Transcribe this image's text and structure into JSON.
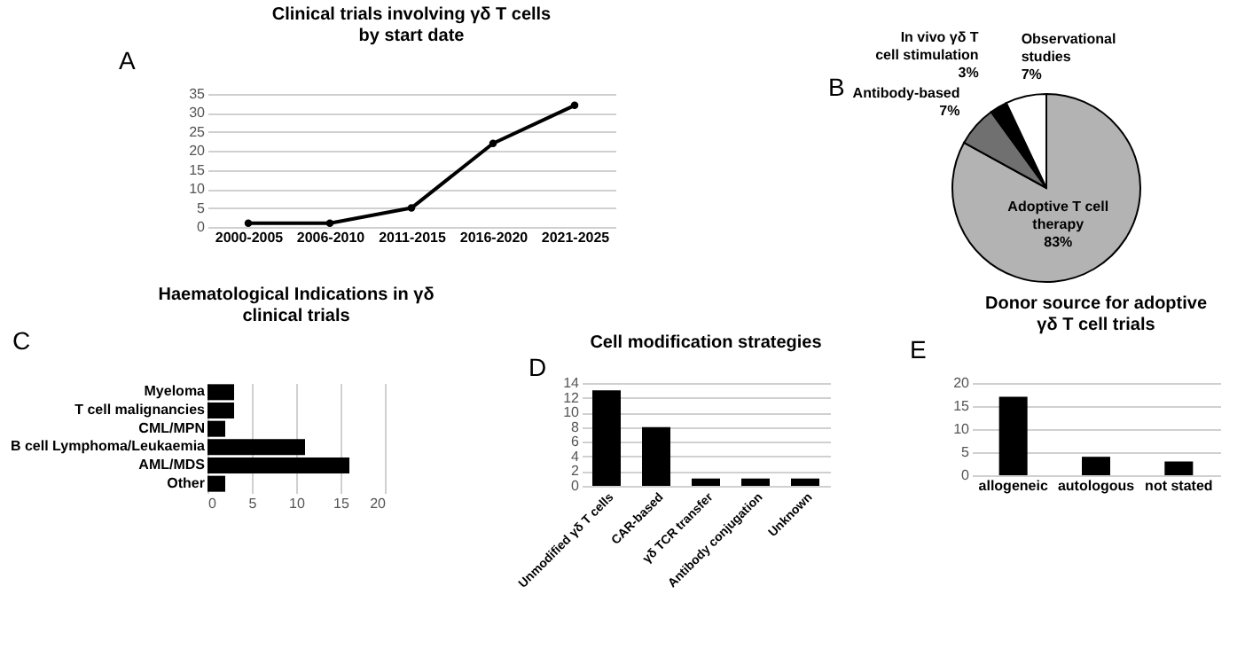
{
  "chart_data": [
    {
      "type": "line",
      "title": "Clinical trials involving γδ T cells\nby start date",
      "categories": [
        "2000-2005",
        "2006-2010",
        "2011-2015",
        "2016-2020",
        "2021-2025"
      ],
      "values": [
        1,
        1,
        5,
        22,
        32
      ],
      "color": "#000000",
      "ylim": [
        0,
        35
      ],
      "yticks": [
        0,
        5,
        10,
        15,
        20,
        25,
        30,
        35
      ],
      "grid": "y",
      "marker": "circle",
      "line_style": "solid",
      "annotations": [
        "A"
      ]
    },
    {
      "type": "pie",
      "categories": [
        "Adoptive T cell therapy",
        "Antibody-based",
        "In vivo γδ T cell stimulation",
        "Observational studies"
      ],
      "values": [
        83,
        7,
        3,
        7
      ],
      "value_labels": [
        "83%",
        "7%",
        "3%",
        "7%"
      ],
      "colors": [
        "#b3b3b3",
        "#707070",
        "#000000",
        "#ffffff"
      ],
      "annotations": [
        "B"
      ]
    },
    {
      "type": "bar",
      "orientation": "horizontal",
      "title": "Haematological Indications in γδ\nclinical trials",
      "categories": [
        "Myeloma",
        "T cell malignancies",
        "CML/MPN",
        "B cell Lymphoma/Leukaemia",
        "AML/MDS",
        "Other"
      ],
      "values": [
        3,
        3,
        2,
        11,
        16,
        2
      ],
      "color": "#000000",
      "xlim": [
        0,
        20
      ],
      "xticks": [
        0,
        5,
        10,
        15,
        20
      ],
      "grid": "x",
      "annotations": [
        "C"
      ]
    },
    {
      "type": "bar",
      "title": "Cell modification strategies",
      "categories": [
        "Unmodified γδ T cells",
        "CAR-based",
        "γδ TCR transfer",
        "Antibody conjugation",
        "Unknown"
      ],
      "values": [
        13,
        8,
        1,
        1,
        1
      ],
      "color": "#000000",
      "ylim": [
        0,
        14
      ],
      "yticks": [
        0,
        2,
        4,
        6,
        8,
        10,
        12,
        14
      ],
      "grid": "y",
      "annotations": [
        "D"
      ]
    },
    {
      "type": "bar",
      "title": "Donor source for adoptive\nγδ T cell trials",
      "categories": [
        "allogeneic",
        "autologous",
        "not stated"
      ],
      "values": [
        17,
        4,
        3
      ],
      "color": "#000000",
      "ylim": [
        0,
        20
      ],
      "yticks": [
        0,
        5,
        10,
        15,
        20
      ],
      "grid": "y",
      "annotations": [
        "E"
      ]
    }
  ]
}
